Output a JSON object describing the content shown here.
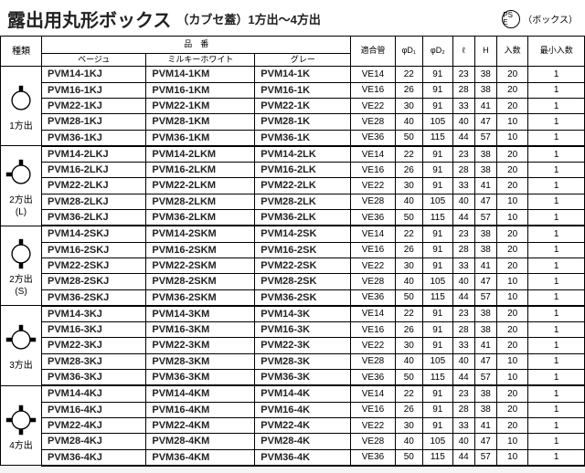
{
  "header": {
    "title_main": "露出用丸形ボックス",
    "title_sub": "（カブセ蓋）1方出～4方出",
    "pse_mark": "PS E",
    "box_label": "（ボックス）"
  },
  "columns": {
    "type": "種類",
    "partno_group": "品　番",
    "beige": "ベージュ",
    "milky": "ミルキーホワイト",
    "gray": "グレー",
    "pipe": "適合管",
    "d1": "φD₁",
    "d2": "φD₂",
    "l": "ℓ",
    "h": "H",
    "qty": "入数",
    "minqty": "最小入数"
  },
  "groups": [
    {
      "label": "1方出",
      "icon": "1way",
      "rows": [
        {
          "b": "PVM14-1KJ",
          "m": "PVM14-1KM",
          "g": "PVM14-1K",
          "p": "VE14",
          "d1": "22",
          "d2": "91",
          "l": "23",
          "h": "38",
          "q": "20",
          "mq": "1"
        },
        {
          "b": "PVM16-1KJ",
          "m": "PVM16-1KM",
          "g": "PVM16-1K",
          "p": "VE16",
          "d1": "26",
          "d2": "91",
          "l": "28",
          "h": "38",
          "q": "20",
          "mq": "1"
        },
        {
          "b": "PVM22-1KJ",
          "m": "PVM22-1KM",
          "g": "PVM22-1K",
          "p": "VE22",
          "d1": "30",
          "d2": "91",
          "l": "33",
          "h": "41",
          "q": "20",
          "mq": "1"
        },
        {
          "b": "PVM28-1KJ",
          "m": "PVM28-1KM",
          "g": "PVM28-1K",
          "p": "VE28",
          "d1": "40",
          "d2": "105",
          "l": "40",
          "h": "47",
          "q": "10",
          "mq": "1"
        },
        {
          "b": "PVM36-1KJ",
          "m": "PVM36-1KM",
          "g": "PVM36-1K",
          "p": "VE36",
          "d1": "50",
          "d2": "115",
          "l": "44",
          "h": "57",
          "q": "10",
          "mq": "1"
        }
      ]
    },
    {
      "label": "2方出\n(L)",
      "icon": "2wayL",
      "rows": [
        {
          "b": "PVM14-2LKJ",
          "m": "PVM14-2LKM",
          "g": "PVM14-2LK",
          "p": "VE14",
          "d1": "22",
          "d2": "91",
          "l": "23",
          "h": "38",
          "q": "20",
          "mq": "1"
        },
        {
          "b": "PVM16-2LKJ",
          "m": "PVM16-2LKM",
          "g": "PVM16-2LK",
          "p": "VE16",
          "d1": "26",
          "d2": "91",
          "l": "28",
          "h": "38",
          "q": "20",
          "mq": "1"
        },
        {
          "b": "PVM22-2LKJ",
          "m": "PVM22-2LKM",
          "g": "PVM22-2LK",
          "p": "VE22",
          "d1": "30",
          "d2": "91",
          "l": "33",
          "h": "41",
          "q": "20",
          "mq": "1"
        },
        {
          "b": "PVM28-2LKJ",
          "m": "PVM28-2LKM",
          "g": "PVM28-2LK",
          "p": "VE28",
          "d1": "40",
          "d2": "105",
          "l": "40",
          "h": "47",
          "q": "10",
          "mq": "1"
        },
        {
          "b": "PVM36-2LKJ",
          "m": "PVM36-2LKM",
          "g": "PVM36-2LK",
          "p": "VE36",
          "d1": "50",
          "d2": "115",
          "l": "44",
          "h": "57",
          "q": "10",
          "mq": "1"
        }
      ]
    },
    {
      "label": "2方出\n(S)",
      "icon": "2wayS",
      "rows": [
        {
          "b": "PVM14-2SKJ",
          "m": "PVM14-2SKM",
          "g": "PVM14-2SK",
          "p": "VE14",
          "d1": "22",
          "d2": "91",
          "l": "23",
          "h": "38",
          "q": "20",
          "mq": "1"
        },
        {
          "b": "PVM16-2SKJ",
          "m": "PVM16-2SKM",
          "g": "PVM16-2SK",
          "p": "VE16",
          "d1": "26",
          "d2": "91",
          "l": "28",
          "h": "38",
          "q": "20",
          "mq": "1"
        },
        {
          "b": "PVM22-2SKJ",
          "m": "PVM22-2SKM",
          "g": "PVM22-2SK",
          "p": "VE22",
          "d1": "30",
          "d2": "91",
          "l": "33",
          "h": "41",
          "q": "20",
          "mq": "1"
        },
        {
          "b": "PVM28-2SKJ",
          "m": "PVM28-2SKM",
          "g": "PVM28-2SK",
          "p": "VE28",
          "d1": "40",
          "d2": "105",
          "l": "40",
          "h": "47",
          "q": "10",
          "mq": "1"
        },
        {
          "b": "PVM36-2SKJ",
          "m": "PVM36-2SKM",
          "g": "PVM36-2SK",
          "p": "VE36",
          "d1": "50",
          "d2": "115",
          "l": "44",
          "h": "57",
          "q": "10",
          "mq": "1"
        }
      ]
    },
    {
      "label": "3方出",
      "icon": "3way",
      "rows": [
        {
          "b": "PVM14-3KJ",
          "m": "PVM14-3KM",
          "g": "PVM14-3K",
          "p": "VE14",
          "d1": "22",
          "d2": "91",
          "l": "23",
          "h": "38",
          "q": "20",
          "mq": "1"
        },
        {
          "b": "PVM16-3KJ",
          "m": "PVM16-3KM",
          "g": "PVM16-3K",
          "p": "VE16",
          "d1": "26",
          "d2": "91",
          "l": "28",
          "h": "38",
          "q": "20",
          "mq": "1"
        },
        {
          "b": "PVM22-3KJ",
          "m": "PVM22-3KM",
          "g": "PVM22-3K",
          "p": "VE22",
          "d1": "30",
          "d2": "91",
          "l": "33",
          "h": "41",
          "q": "20",
          "mq": "1"
        },
        {
          "b": "PVM28-3KJ",
          "m": "PVM28-3KM",
          "g": "PVM28-3K",
          "p": "VE28",
          "d1": "40",
          "d2": "105",
          "l": "40",
          "h": "47",
          "q": "10",
          "mq": "1"
        },
        {
          "b": "PVM36-3KJ",
          "m": "PVM36-3KM",
          "g": "PVM36-3K",
          "p": "VE36",
          "d1": "50",
          "d2": "115",
          "l": "44",
          "h": "57",
          "q": "10",
          "mq": "1"
        }
      ]
    },
    {
      "label": "4方出",
      "icon": "4way",
      "rows": [
        {
          "b": "PVM14-4KJ",
          "m": "PVM14-4KM",
          "g": "PVM14-4K",
          "p": "VE14",
          "d1": "22",
          "d2": "91",
          "l": "23",
          "h": "38",
          "q": "20",
          "mq": "1"
        },
        {
          "b": "PVM16-4KJ",
          "m": "PVM16-4KM",
          "g": "PVM16-4K",
          "p": "VE16",
          "d1": "26",
          "d2": "91",
          "l": "28",
          "h": "38",
          "q": "20",
          "mq": "1"
        },
        {
          "b": "PVM22-4KJ",
          "m": "PVM22-4KM",
          "g": "PVM22-4K",
          "p": "VE22",
          "d1": "30",
          "d2": "91",
          "l": "33",
          "h": "41",
          "q": "20",
          "mq": "1"
        },
        {
          "b": "PVM28-4KJ",
          "m": "PVM28-4KM",
          "g": "PVM28-4K",
          "p": "VE28",
          "d1": "40",
          "d2": "105",
          "l": "40",
          "h": "47",
          "q": "10",
          "mq": "1"
        },
        {
          "b": "PVM36-4KJ",
          "m": "PVM36-4KM",
          "g": "PVM36-4K",
          "p": "VE36",
          "d1": "50",
          "d2": "115",
          "l": "44",
          "h": "57",
          "q": "10",
          "mq": "1"
        }
      ]
    }
  ]
}
